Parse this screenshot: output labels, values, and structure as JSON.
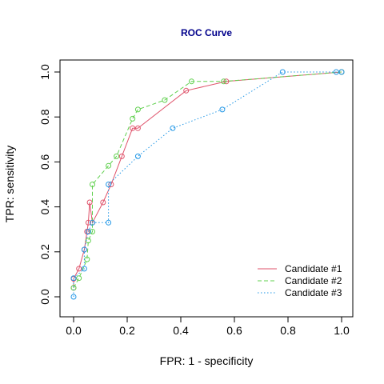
{
  "chart_data": {
    "type": "line",
    "title": "ROC Curve",
    "xlabel": "FPR: 1 - specificity",
    "ylabel": "TPR: sensitivity",
    "xlim": [
      0,
      1
    ],
    "ylim": [
      0,
      1
    ],
    "xticks": [
      "0.0",
      "0.2",
      "0.4",
      "0.6",
      "0.8",
      "1.0"
    ],
    "yticks": [
      "0.0",
      "0.2",
      "0.4",
      "0.6",
      "0.8",
      "1.0"
    ],
    "grid": false,
    "legend_position": "bottom-right",
    "series": [
      {
        "name": "Candidate #1",
        "color": "#df536b",
        "line_style": "solid",
        "x": [
          0.0,
          0.0,
          0.02,
          0.04,
          0.05,
          0.055,
          0.06,
          0.07,
          0.11,
          0.14,
          0.18,
          0.22,
          0.24,
          0.42,
          0.57,
          1.0
        ],
        "y": [
          0.04,
          0.08,
          0.125,
          0.21,
          0.29,
          0.33,
          0.42,
          0.33,
          0.42,
          0.5,
          0.625,
          0.75,
          0.75,
          0.917,
          0.958,
          1.0
        ]
      },
      {
        "name": "Candidate #2",
        "color": "#61d04f",
        "line_style": "dashed",
        "x": [
          0.0,
          0.02,
          0.05,
          0.055,
          0.07,
          0.07,
          0.13,
          0.16,
          0.22,
          0.24,
          0.34,
          0.44,
          0.56,
          1.0
        ],
        "y": [
          0.04,
          0.083,
          0.167,
          0.25,
          0.29,
          0.5,
          0.583,
          0.625,
          0.792,
          0.833,
          0.875,
          0.958,
          0.958,
          1.0
        ]
      },
      {
        "name": "Candidate #3",
        "color": "#2297e6",
        "line_style": "dotted",
        "x": [
          0.0,
          0.0,
          0.04,
          0.04,
          0.055,
          0.07,
          0.13,
          0.13,
          0.24,
          0.37,
          0.555,
          0.78,
          0.98,
          1.0
        ],
        "y": [
          0.0,
          0.083,
          0.125,
          0.21,
          0.29,
          0.33,
          0.33,
          0.5,
          0.625,
          0.75,
          0.833,
          1.0,
          1.0,
          1.0
        ]
      }
    ]
  }
}
